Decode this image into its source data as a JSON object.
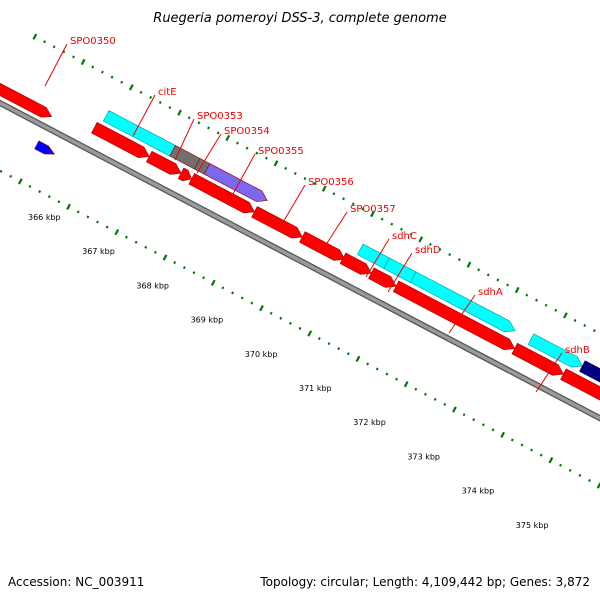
{
  "title": "Ruegeria pomeroyi DSS-3, complete genome",
  "footer": {
    "accession": "Accession: NC_003911",
    "topology": "Topology: circular; Length: 4,109,442 bp; Genes: 3,872"
  },
  "colors": {
    "background": "#ffffff",
    "backbone": "#9a9a9a",
    "forward_gene": "#ff0000",
    "reverse_gene": "#ff0000",
    "cyan_feature": "#00ffff",
    "grey_feature": "#707070",
    "purple_feature": "#7b68ee",
    "navy_feature": "#000080",
    "blue_feature": "#0000ff",
    "tick_dots": "#007700",
    "label_line": "#ee0000"
  },
  "scale_ticks": [
    {
      "label": "366 kbp"
    },
    {
      "label": "367 kbp"
    },
    {
      "label": "368 kbp"
    },
    {
      "label": "369 kbp"
    },
    {
      "label": "370 kbp"
    },
    {
      "label": "371 kbp"
    },
    {
      "label": "372 kbp"
    },
    {
      "label": "373 kbp"
    },
    {
      "label": "374 kbp"
    },
    {
      "label": "375 kbp"
    }
  ],
  "gene_labels": [
    {
      "name": "SPO0350"
    },
    {
      "name": "citE"
    },
    {
      "name": "SPO0353"
    },
    {
      "name": "SPO0354"
    },
    {
      "name": "SPO0355"
    },
    {
      "name": "SPO0356"
    },
    {
      "name": "SPO0357"
    },
    {
      "name": "sdhC"
    },
    {
      "name": "sdhD"
    },
    {
      "name": "sdhA"
    },
    {
      "name": "sdhB"
    }
  ],
  "features": [
    {
      "ring": "outer-red",
      "color": "forward_gene"
    },
    {
      "ring": "cyan",
      "color": "cyan_feature"
    },
    {
      "ring": "cyan",
      "color": "grey_feature"
    },
    {
      "ring": "cyan",
      "color": "grey_feature"
    },
    {
      "ring": "cyan",
      "color": "purple_feature"
    },
    {
      "ring": "inner-red",
      "color": "reverse_gene"
    },
    {
      "ring": "inner-red",
      "color": "reverse_gene"
    },
    {
      "ring": "inner-red",
      "color": "reverse_gene"
    },
    {
      "ring": "inner-red",
      "color": "reverse_gene"
    },
    {
      "ring": "inner-red",
      "color": "reverse_gene"
    },
    {
      "ring": "inner-red",
      "color": "reverse_gene"
    },
    {
      "ring": "cyan",
      "color": "cyan_feature"
    },
    {
      "ring": "cyan",
      "color": "cyan_feature"
    },
    {
      "ring": "cyan",
      "color": "cyan_feature"
    },
    {
      "ring": "inner-red",
      "color": "reverse_gene"
    },
    {
      "ring": "inner-red",
      "color": "reverse_gene"
    },
    {
      "ring": "inner-red",
      "color": "reverse_gene"
    },
    {
      "ring": "cyan",
      "color": "cyan_feature"
    },
    {
      "ring": "cyan",
      "color": "navy_feature"
    },
    {
      "ring": "inner-red",
      "color": "reverse_gene"
    },
    {
      "ring": "inner-red",
      "color": "reverse_gene"
    },
    {
      "ring": "blue-small",
      "color": "blue_feature"
    }
  ]
}
